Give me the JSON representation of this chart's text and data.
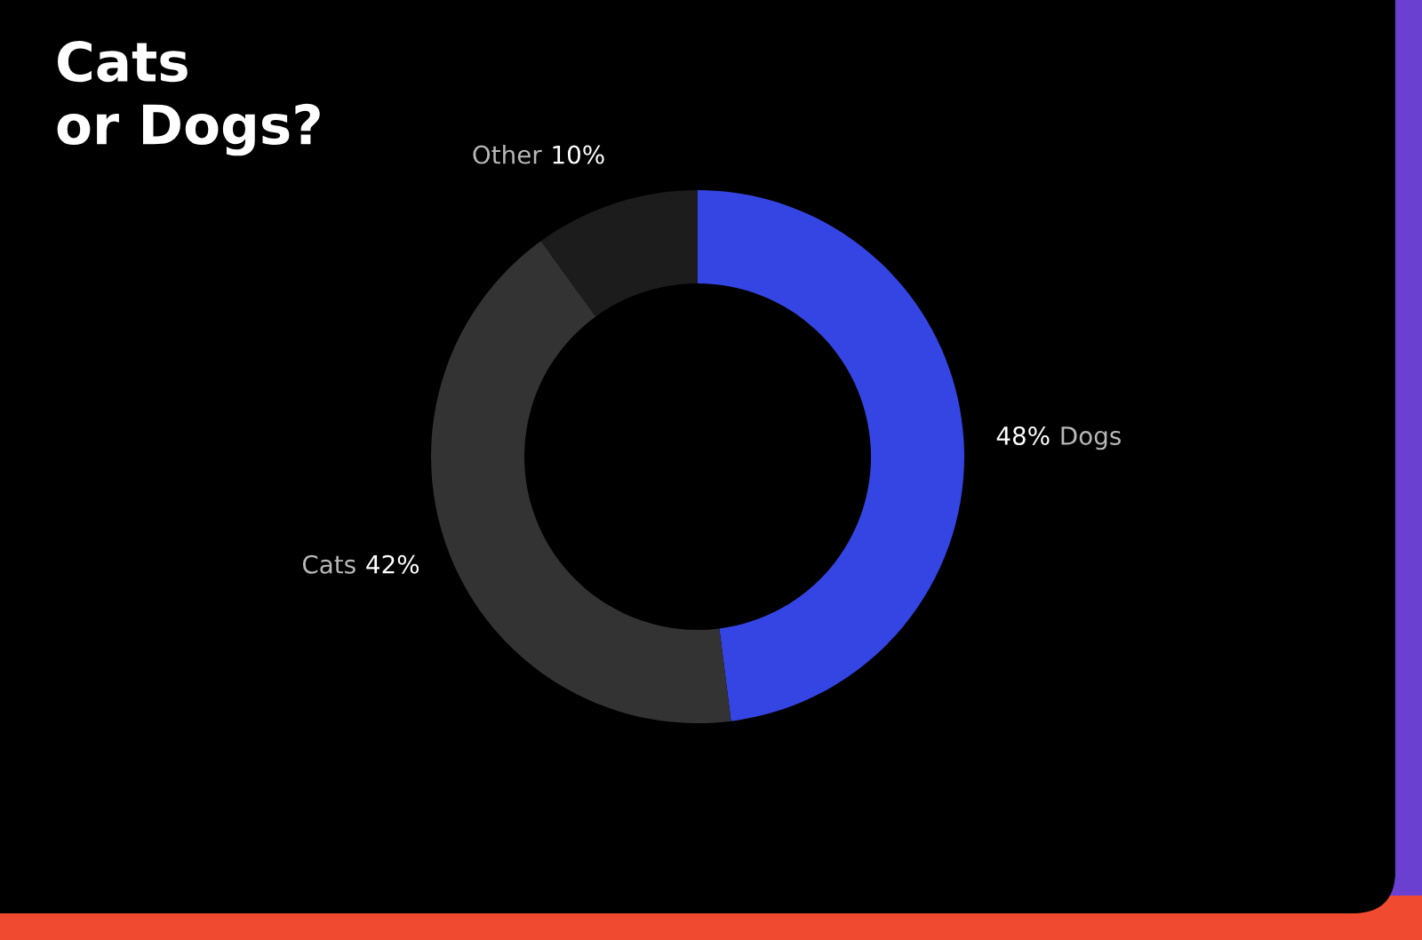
{
  "chart_data": {
    "type": "donut",
    "title": "Cats\nor Dogs?",
    "categories": [
      "Dogs",
      "Cats",
      "Other"
    ],
    "values": [
      48,
      42,
      10
    ],
    "colors": [
      "#3545e3",
      "#333333",
      "#1c1c1c"
    ],
    "value_labels": [
      "48%",
      "42%",
      "10%"
    ],
    "legend": false
  }
}
